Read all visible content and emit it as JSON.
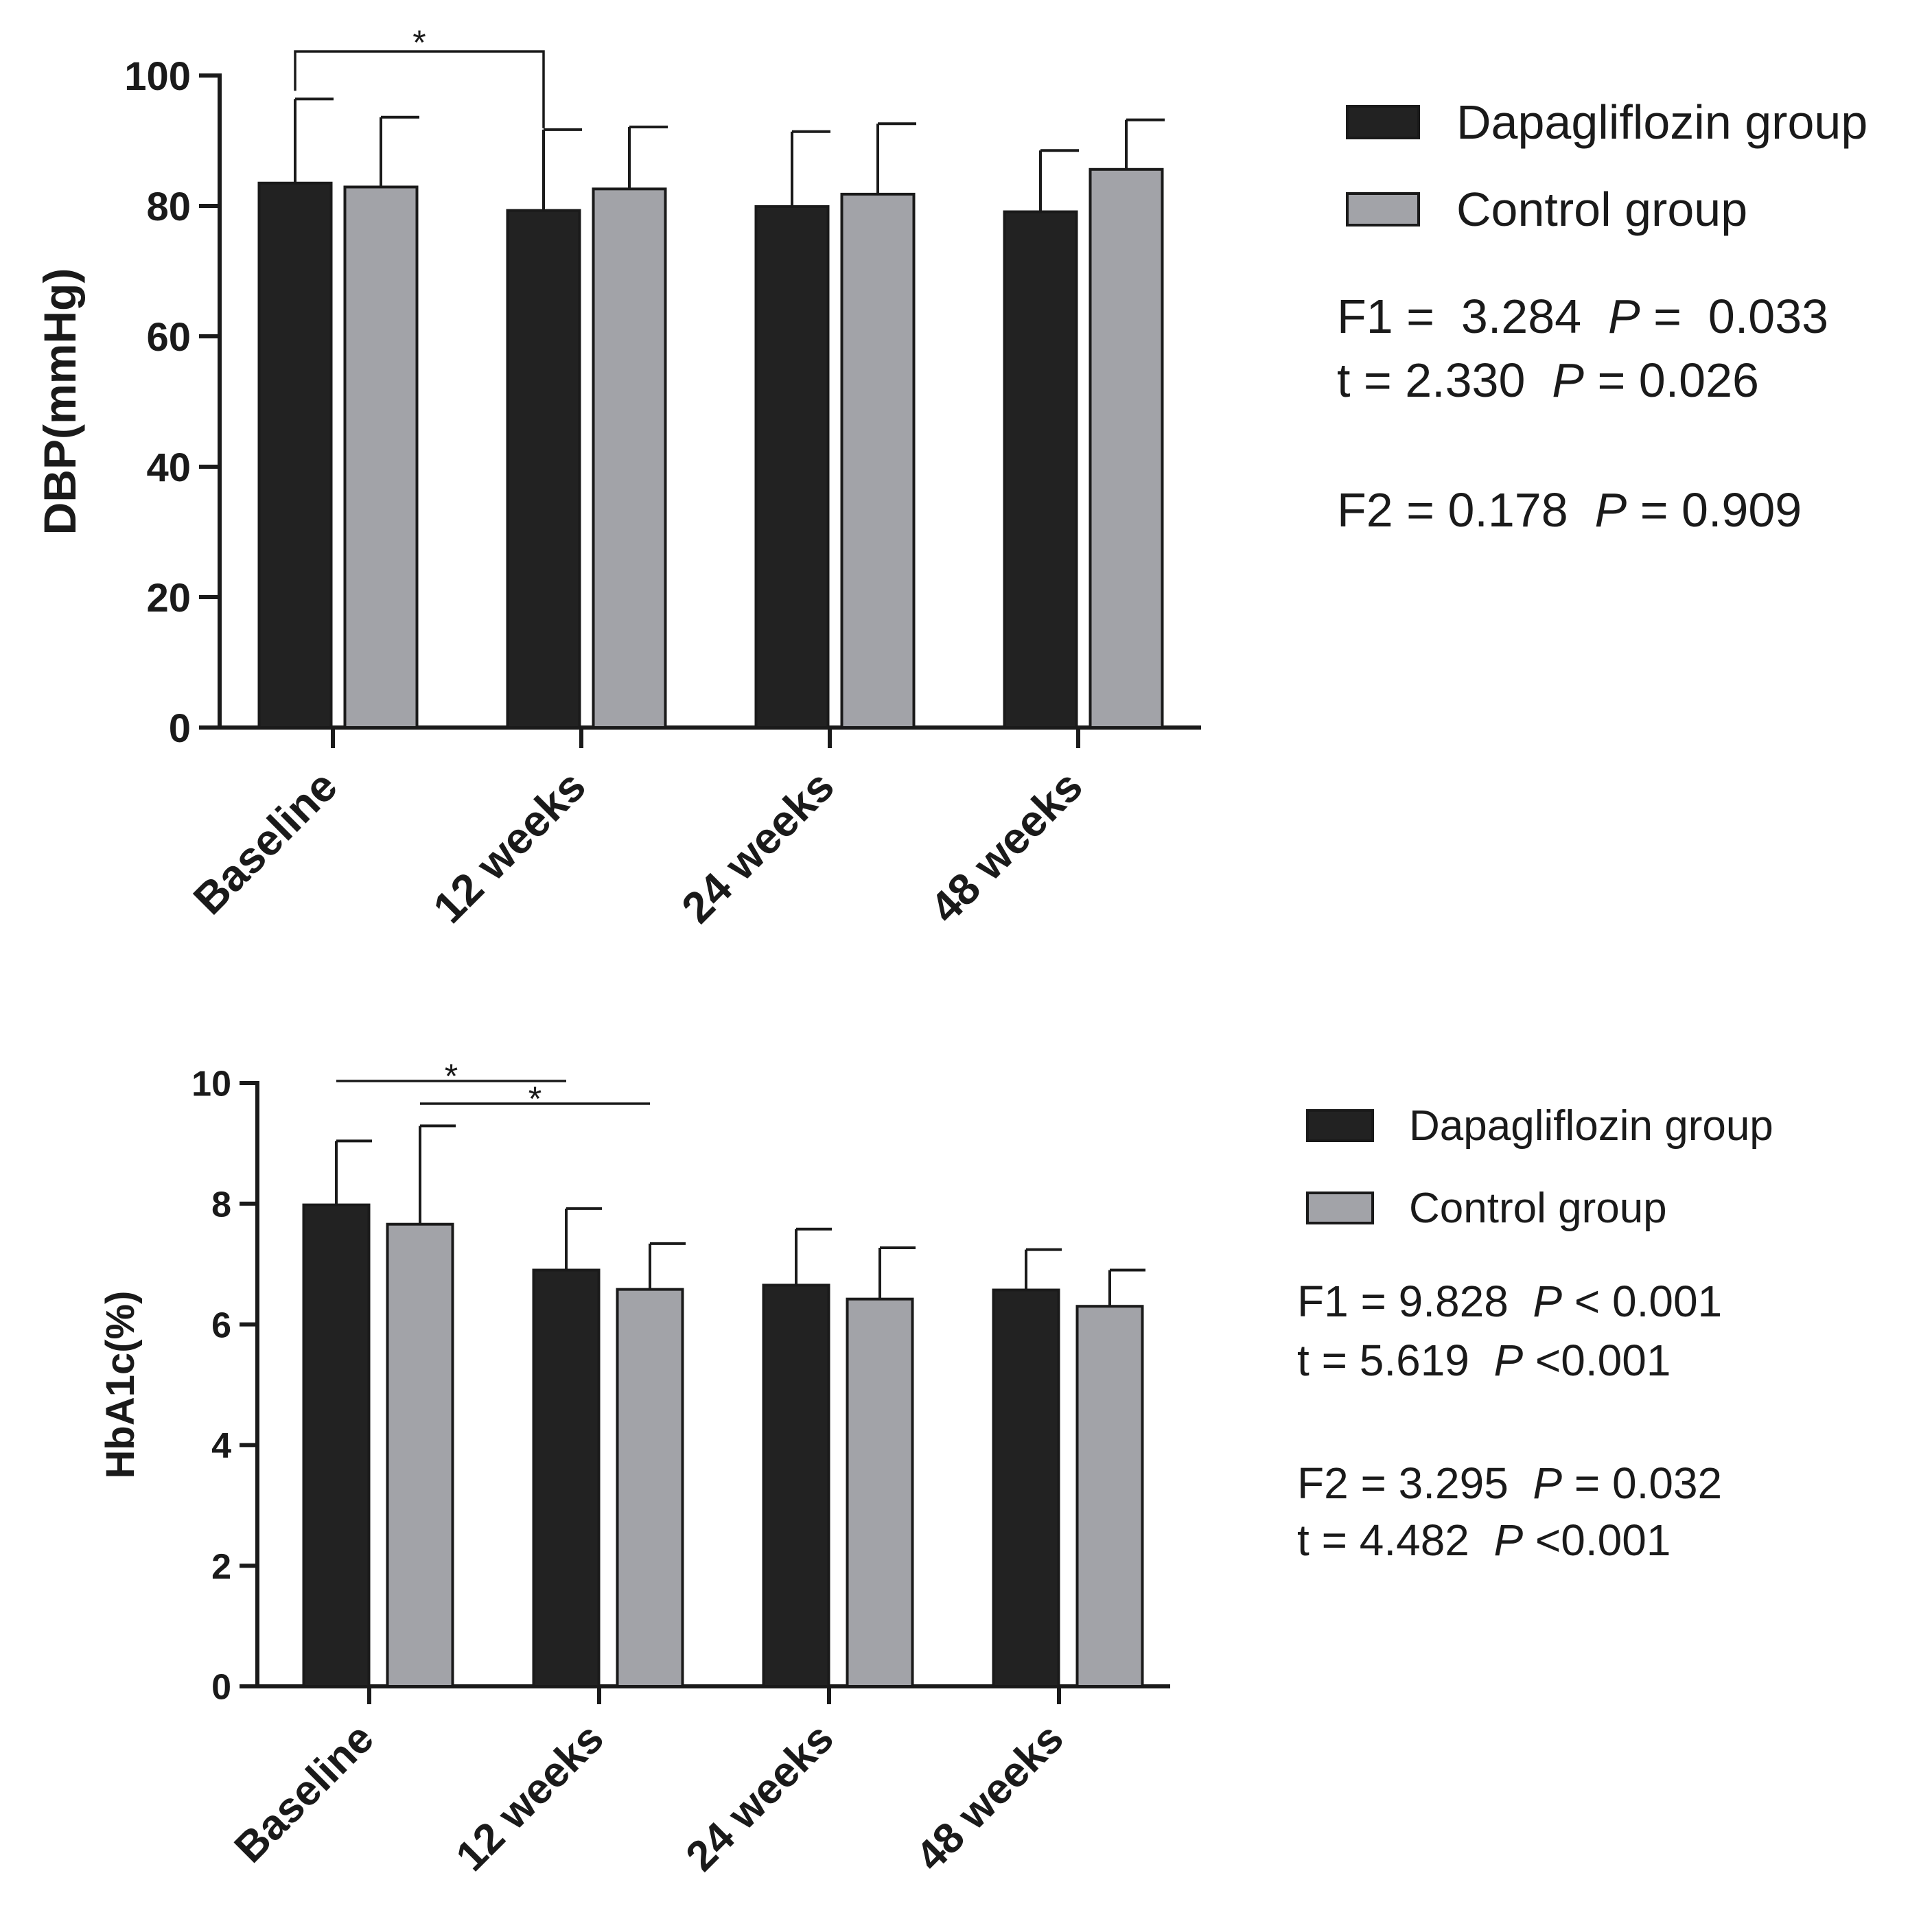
{
  "chart_data": [
    {
      "type": "bar",
      "categories": [
        "Baseline",
        "12 weeks",
        "24 weeks",
        "48 weeks"
      ],
      "ylabel": "DBP(mmHg)",
      "ylim": [
        0,
        100
      ],
      "yticks": [
        0,
        20,
        40,
        60,
        80,
        100
      ],
      "series": [
        {
          "name": "Dapagliflozin group",
          "color": "#222222",
          "values": [
            83.5,
            79.3,
            79.9,
            79.1
          ],
          "sd": [
            12.9,
            12.4,
            11.5,
            9.4
          ]
        },
        {
          "name": "Control group",
          "color": "#a2a3a8",
          "values": [
            82.9,
            82.6,
            81.8,
            85.6
          ],
          "sd": [
            10.7,
            9.5,
            10.8,
            7.6
          ]
        }
      ],
      "significance": [
        {
          "from": "Baseline",
          "to": "12 weeks",
          "series": "Dapagliflozin group",
          "label": "*",
          "style": "bracket"
        }
      ],
      "stats": [
        {
          "lines": [
            {
              "pre": "F1 =  3.284  ",
              "p": "P",
              "post": " =  0.033"
            },
            {
              "pre": "t = 2.330  ",
              "p": "P",
              "post": " = 0.026"
            }
          ]
        },
        {
          "lines": [
            {
              "pre": "F2 = 0.178  ",
              "p": "P",
              "post": " = 0.909"
            }
          ]
        }
      ]
    },
    {
      "type": "bar",
      "categories": [
        "Baseline",
        "12 weeks",
        "24 weeks",
        "48 weeks"
      ],
      "ylabel": "HbA1c(%)",
      "ylim": [
        0,
        10
      ],
      "yticks": [
        0,
        2,
        4,
        6,
        8,
        10
      ],
      "series": [
        {
          "name": "Dapagliflozin group",
          "color": "#222222",
          "values": [
            7.98,
            6.9,
            6.65,
            6.57
          ],
          "sd": [
            1.06,
            1.02,
            0.93,
            0.67
          ]
        },
        {
          "name": "Control group",
          "color": "#a2a3a8",
          "values": [
            7.66,
            6.58,
            6.42,
            6.3
          ],
          "sd": [
            1.63,
            0.76,
            0.85,
            0.6
          ]
        }
      ],
      "significance": [
        {
          "from": "Baseline",
          "to": "12 weeks",
          "series": "Dapagliflozin group",
          "label": "*",
          "style": "line"
        },
        {
          "from": "Baseline",
          "to": "12 weeks",
          "series": "Control group",
          "label": "*",
          "style": "line"
        }
      ],
      "stats": [
        {
          "lines": [
            {
              "pre": "F1 = 9.828  ",
              "p": "P",
              "post": " < 0.001"
            },
            {
              "pre": "t = 5.619  ",
              "p": "P",
              "post": " <0.001"
            }
          ]
        },
        {
          "lines": [
            {
              "pre": "F2 = 3.295  ",
              "p": "P",
              "post": " = 0.032"
            },
            {
              "pre": "t = 4.482  ",
              "p": "P",
              "post": " <0.001"
            }
          ]
        }
      ]
    }
  ]
}
